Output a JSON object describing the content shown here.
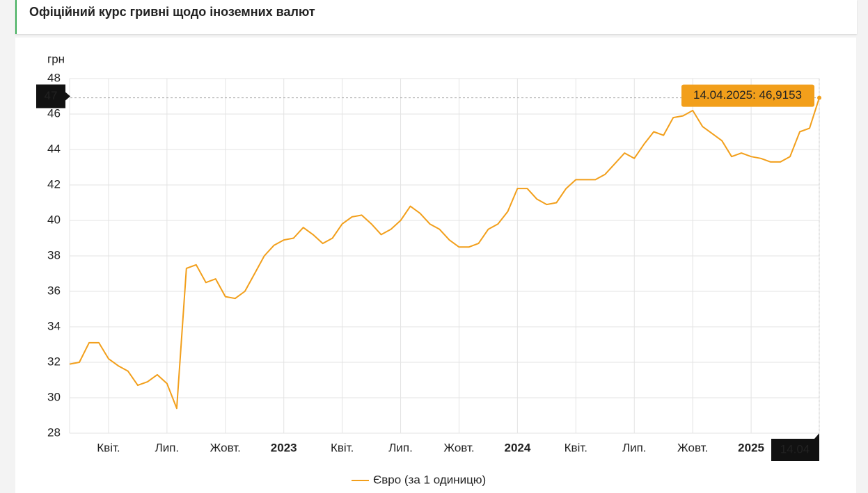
{
  "chart_data": {
    "type": "line",
    "title": "Офіційний курс гривні щодо іноземних валют",
    "y_label": "грн",
    "categories": [
      null,
      null,
      null,
      null,
      "Квіт.",
      null,
      null,
      null,
      null,
      null,
      "Лип.",
      null,
      null,
      null,
      null,
      null,
      "Жовт.",
      null,
      null,
      null,
      null,
      null,
      "2023",
      null,
      null,
      null,
      null,
      null,
      "Квіт.",
      null,
      null,
      null,
      null,
      null,
      "Лип.",
      null,
      null,
      null,
      null,
      null,
      "Жовт.",
      null,
      null,
      null,
      null,
      null,
      "2024",
      null,
      null,
      null,
      null,
      null,
      "Квіт.",
      null,
      null,
      null,
      null,
      null,
      "Лип.",
      null,
      null,
      null,
      null,
      null,
      "Жовт.",
      null,
      null,
      null,
      null,
      null,
      "2025",
      null,
      null,
      null,
      null,
      null,
      null,
      "14.04"
    ],
    "series": [
      {
        "name": "Євро (за 1 одиницю)",
        "color": "#f29f1b",
        "values": [
          31.9,
          32.0,
          33.1,
          33.1,
          32.2,
          31.8,
          31.5,
          30.7,
          30.9,
          31.3,
          30.8,
          29.4,
          37.3,
          37.5,
          36.5,
          36.7,
          35.7,
          35.6,
          36.0,
          37.0,
          38.0,
          38.6,
          38.9,
          39.0,
          39.6,
          39.2,
          38.7,
          39.0,
          39.8,
          40.2,
          40.3,
          39.8,
          39.2,
          39.5,
          40.0,
          40.8,
          40.4,
          39.8,
          39.5,
          38.9,
          38.5,
          38.5,
          38.7,
          39.5,
          39.8,
          40.5,
          41.8,
          41.8,
          41.2,
          40.9,
          41.0,
          41.8,
          42.3,
          42.3,
          42.3,
          42.6,
          43.2,
          43.8,
          43.5,
          44.3,
          45.0,
          44.8,
          45.8,
          45.9,
          46.2,
          45.3,
          44.9,
          44.5,
          43.6,
          43.8,
          43.6,
          43.5,
          43.3,
          43.3,
          43.6,
          45.0,
          45.2,
          46.9153
        ]
      }
    ],
    "ylim": [
      28,
      48
    ],
    "yticks": [
      28,
      30,
      32,
      34,
      36,
      38,
      40,
      42,
      44,
      46,
      48
    ],
    "grid": true,
    "tooltip": "14.04.2025: 46,9153",
    "crosshair_label": 47,
    "legend": "bottom"
  }
}
